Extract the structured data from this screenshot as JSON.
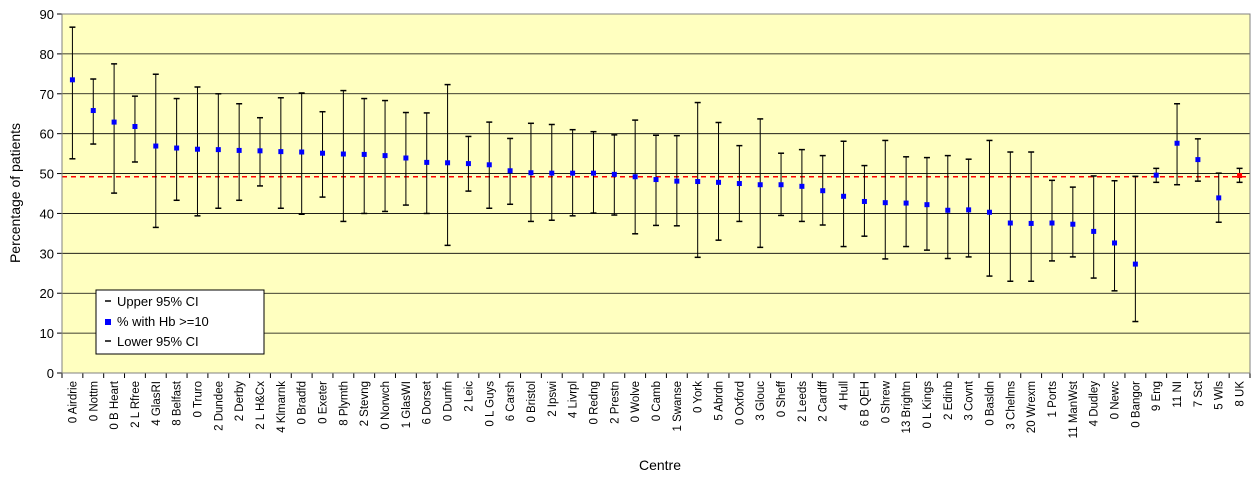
{
  "chart_data": {
    "type": "scatter",
    "xlabel": "Centre",
    "ylabel": "Percentage of patients",
    "ylim": [
      0,
      90
    ],
    "yticks": [
      0,
      10,
      20,
      30,
      40,
      50,
      60,
      70,
      80,
      90
    ],
    "grid": true,
    "legend_position": "bottom-left",
    "legend": {
      "upper": "Upper 95% CI",
      "point": "% with Hb >=10",
      "lower": "Lower 95% CI"
    },
    "reference_line": 49.2,
    "colors": {
      "plot_bg": "#ffffc0",
      "point": "#0000ff",
      "highlight_point": "#ff0000",
      "reference_line": "#ff0000",
      "error_bar": "#000000",
      "grid": "#000000"
    },
    "categories": [
      "0 Airdrie",
      "0 Nottm",
      "0 B Heart",
      "2 L Rfree",
      "4 GlasRI",
      "8 Belfast",
      "0 Truro",
      "2 Dundee",
      "2 Derby",
      "2 L H&Cx",
      "4 Klmarnk",
      "0 Bradfd",
      "0 Exeter",
      "8 Plymth",
      "2 Stevng",
      "0 Norwch",
      "1 GlasWI",
      "6 Dorset",
      "0 Dunfn",
      "2 Leic",
      "0 L Guys",
      "6 Carsh",
      "0 Bristol",
      "2 Ipswi",
      "4 Livrpl",
      "0 Redng",
      "2 Prestn",
      "0 Wolve",
      "0 Camb",
      "1 Swanse",
      "0 York",
      "5 Abrdn",
      "0 Oxford",
      "3 Glouc",
      "0 Sheff",
      "2 Leeds",
      "2 Cardff",
      "4 Hull",
      "6 B QEH",
      "0 Shrew",
      "13 Brightn",
      "0 L Kings",
      "2 Edinb",
      "3 Covnt",
      "0 Basldn",
      "3 Chelms",
      "20 Wrexm",
      "1 Ports",
      "11 ManWst",
      "4 Dudley",
      "0 Newc",
      "0 Bangor",
      "9 Eng",
      "11 NI",
      "7 Sct",
      "5 Wls",
      "8 UK"
    ],
    "series": [
      {
        "name": "Upper 95% CI",
        "values": [
          86.7,
          73.7,
          77.5,
          69.4,
          74.9,
          68.8,
          71.7,
          70.0,
          67.5,
          64.0,
          69.0,
          70.2,
          65.5,
          70.8,
          68.8,
          68.3,
          65.3,
          65.2,
          72.3,
          59.3,
          62.9,
          58.8,
          62.6,
          62.3,
          61.0,
          60.5,
          59.7,
          63.4,
          59.6,
          59.5,
          67.8,
          62.8,
          57.0,
          63.7,
          55.1,
          56.0,
          54.5,
          58.1,
          52.0,
          58.3,
          54.2,
          54.0,
          54.5,
          53.6,
          58.3,
          55.4,
          55.4,
          48.3,
          46.6,
          49.4,
          48.2,
          49.3,
          51.3,
          67.5,
          58.7,
          50.1,
          51.3
        ]
      },
      {
        "name": "% with Hb >=10",
        "values": [
          73.5,
          65.8,
          62.9,
          61.8,
          56.9,
          56.4,
          56.1,
          56.0,
          55.8,
          55.7,
          55.5,
          55.4,
          55.1,
          54.9,
          54.8,
          54.5,
          53.9,
          52.8,
          52.7,
          52.5,
          52.2,
          50.7,
          50.2,
          50.1,
          50.1,
          50.1,
          49.8,
          49.2,
          48.5,
          48.1,
          48.0,
          47.8,
          47.5,
          47.2,
          47.2,
          46.8,
          45.7,
          44.3,
          43.0,
          42.7,
          42.6,
          42.2,
          40.8,
          40.9,
          40.3,
          37.6,
          37.5,
          37.6,
          37.3,
          35.5,
          32.6,
          27.3,
          49.6,
          57.6,
          53.5,
          43.9,
          49.5
        ]
      },
      {
        "name": "Lower 95% CI",
        "values": [
          53.7,
          57.4,
          45.1,
          52.9,
          36.5,
          43.3,
          39.4,
          41.3,
          43.3,
          46.9,
          41.3,
          39.8,
          44.1,
          38.0,
          40.0,
          40.5,
          42.1,
          40.0,
          32.0,
          45.6,
          41.3,
          42.3,
          38.0,
          38.3,
          39.4,
          40.1,
          39.6,
          34.9,
          37.0,
          36.9,
          29.0,
          33.3,
          38.0,
          31.5,
          39.5,
          38.0,
          37.1,
          31.7,
          34.3,
          28.6,
          31.7,
          30.8,
          28.7,
          29.1,
          24.3,
          23.0,
          23.0,
          28.1,
          29.1,
          23.8,
          20.6,
          12.9,
          47.8,
          47.2,
          48.1,
          37.8,
          47.8
        ]
      }
    ]
  }
}
